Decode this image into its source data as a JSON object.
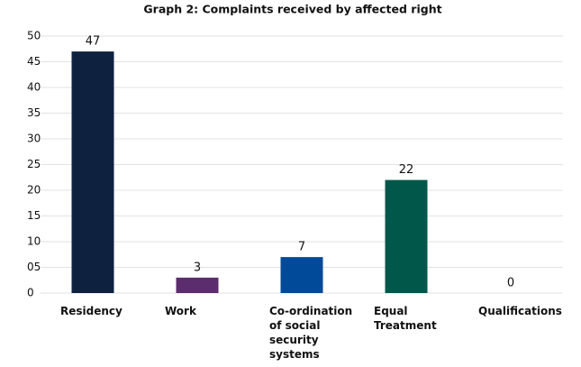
{
  "chart_data": {
    "type": "bar",
    "title": "Graph 2: Complaints received by affected right",
    "categories": [
      "Residency",
      "Work",
      "Co-ordination of social security systems",
      "Equal Treatment",
      "Qualifications"
    ],
    "values": [
      47,
      3,
      7,
      22,
      0
    ],
    "colors": [
      "#0e2240",
      "#5b2d6e",
      "#004a99",
      "#00574a",
      "#888888"
    ],
    "ylim": [
      0,
      50
    ],
    "yticks": [
      0,
      {
        "value": 5,
        "label": "05"
      },
      10,
      15,
      20,
      25,
      30,
      35,
      40,
      45,
      50
    ],
    "grid": true
  }
}
